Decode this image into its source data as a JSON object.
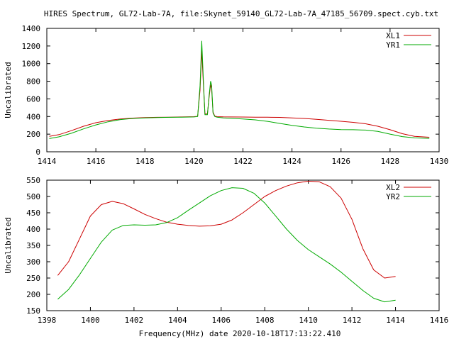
{
  "figure": {
    "title": "HIRES Spectrum, GL72-Lab-7A, file:Skynet_59140_GL72-Lab-7A_47185_56709.spect.cyb.txt",
    "footer_xlabel": "Frequency(MHz) date 2020-10-18T17:13:22.410"
  },
  "chart_data": [
    {
      "type": "line",
      "title": "",
      "xlabel": "",
      "ylabel": "Uncalibrated",
      "xlim": [
        1414,
        1430
      ],
      "ylim": [
        0,
        1400
      ],
      "xticks": [
        1414,
        1416,
        1418,
        1420,
        1422,
        1424,
        1426,
        1428,
        1430
      ],
      "xtick_labels": [
        "1414",
        "1416",
        "1418",
        "1420",
        "1422",
        "1424",
        "1426",
        "1428",
        "1430"
      ],
      "yticks": [
        0,
        200,
        400,
        600,
        800,
        1000,
        1200,
        1400
      ],
      "ytick_labels": [
        "0",
        "200",
        "400",
        "600",
        "800",
        "1000",
        "1200",
        "1400"
      ],
      "grid": false,
      "legend_position": "top-right",
      "series": [
        {
          "name": "XL1",
          "color": "#cc0000",
          "x": [
            1414.1,
            1414.5,
            1415,
            1415.5,
            1416,
            1416.5,
            1417,
            1417.5,
            1418,
            1418.5,
            1419,
            1419.5,
            1420,
            1420.15,
            1420.25,
            1420.32,
            1420.38,
            1420.45,
            1420.55,
            1420.62,
            1420.68,
            1420.72,
            1420.78,
            1420.85,
            1420.95,
            1421.2,
            1421.5,
            1422,
            1422.5,
            1423,
            1423.5,
            1424,
            1424.5,
            1425,
            1425.5,
            1426,
            1426.5,
            1427,
            1427.5,
            1428,
            1428.5,
            1429,
            1429.6
          ],
          "y": [
            175,
            195,
            240,
            290,
            330,
            355,
            372,
            382,
            388,
            391,
            393,
            395,
            398,
            402,
            700,
            1150,
            800,
            430,
            430,
            620,
            760,
            720,
            450,
            405,
            398,
            396,
            395,
            394,
            393,
            392,
            390,
            385,
            378,
            368,
            357,
            346,
            334,
            318,
            290,
            250,
            205,
            175,
            165
          ]
        },
        {
          "name": "YR1",
          "color": "#00aa00",
          "x": [
            1414.1,
            1414.5,
            1415,
            1415.5,
            1416,
            1416.5,
            1417,
            1417.5,
            1418,
            1418.5,
            1419,
            1419.5,
            1420,
            1420.15,
            1420.25,
            1420.32,
            1420.38,
            1420.45,
            1420.55,
            1420.62,
            1420.68,
            1420.72,
            1420.78,
            1420.85,
            1420.95,
            1421.2,
            1421.5,
            1422,
            1422.5,
            1423,
            1423.5,
            1424,
            1424.5,
            1425,
            1425.5,
            1426,
            1426.5,
            1427,
            1427.5,
            1428,
            1428.5,
            1429,
            1429.6
          ],
          "y": [
            150,
            170,
            210,
            260,
            305,
            340,
            365,
            378,
            385,
            389,
            391,
            393,
            395,
            400,
            750,
            1255,
            850,
            420,
            420,
            640,
            800,
            760,
            440,
            400,
            392,
            385,
            380,
            372,
            362,
            345,
            322,
            300,
            282,
            268,
            258,
            252,
            250,
            246,
            232,
            200,
            172,
            158,
            152
          ]
        }
      ]
    },
    {
      "type": "line",
      "title": "",
      "xlabel": "Frequency(MHz) date 2020-10-18T17:13:22.410",
      "ylabel": "Uncalibrated",
      "xlim": [
        1398,
        1416
      ],
      "ylim": [
        150,
        550
      ],
      "xticks": [
        1398,
        1400,
        1402,
        1404,
        1406,
        1408,
        1410,
        1412,
        1414,
        1416
      ],
      "xtick_labels": [
        "1398",
        "1400",
        "1402",
        "1404",
        "1406",
        "1408",
        "1410",
        "1412",
        "1414",
        "1416"
      ],
      "yticks": [
        150,
        200,
        250,
        300,
        350,
        400,
        450,
        500,
        550
      ],
      "ytick_labels": [
        "150",
        "200",
        "250",
        "300",
        "350",
        "400",
        "450",
        "500",
        "550"
      ],
      "grid": false,
      "legend_position": "top-right",
      "series": [
        {
          "name": "XL2",
          "color": "#cc0000",
          "x": [
            1398.5,
            1399,
            1399.5,
            1400,
            1400.5,
            1401,
            1401.5,
            1402,
            1402.5,
            1403,
            1403.5,
            1404,
            1404.5,
            1405,
            1405.5,
            1406,
            1406.5,
            1407,
            1407.5,
            1408,
            1408.5,
            1409,
            1409.5,
            1410,
            1410.5,
            1411,
            1411.5,
            1412,
            1412.5,
            1413,
            1413.5,
            1414
          ],
          "y": [
            258,
            300,
            370,
            440,
            475,
            485,
            478,
            462,
            445,
            432,
            421,
            415,
            411,
            409,
            410,
            415,
            428,
            450,
            475,
            500,
            518,
            532,
            542,
            547,
            545,
            530,
            495,
            430,
            340,
            275,
            250,
            255
          ]
        },
        {
          "name": "YR2",
          "color": "#00aa00",
          "x": [
            1398.5,
            1399,
            1399.5,
            1400,
            1400.5,
            1401,
            1401.5,
            1402,
            1402.5,
            1403,
            1403.5,
            1404,
            1404.5,
            1405,
            1405.5,
            1406,
            1406.5,
            1407,
            1407.5,
            1408,
            1408.5,
            1409,
            1409.5,
            1410,
            1410.5,
            1411,
            1411.5,
            1412,
            1412.5,
            1413,
            1413.5,
            1414
          ],
          "y": [
            185,
            215,
            260,
            310,
            360,
            397,
            411,
            413,
            412,
            413,
            420,
            435,
            458,
            480,
            502,
            518,
            527,
            525,
            510,
            480,
            440,
            400,
            365,
            337,
            315,
            293,
            268,
            240,
            212,
            188,
            177,
            182
          ]
        }
      ]
    }
  ]
}
